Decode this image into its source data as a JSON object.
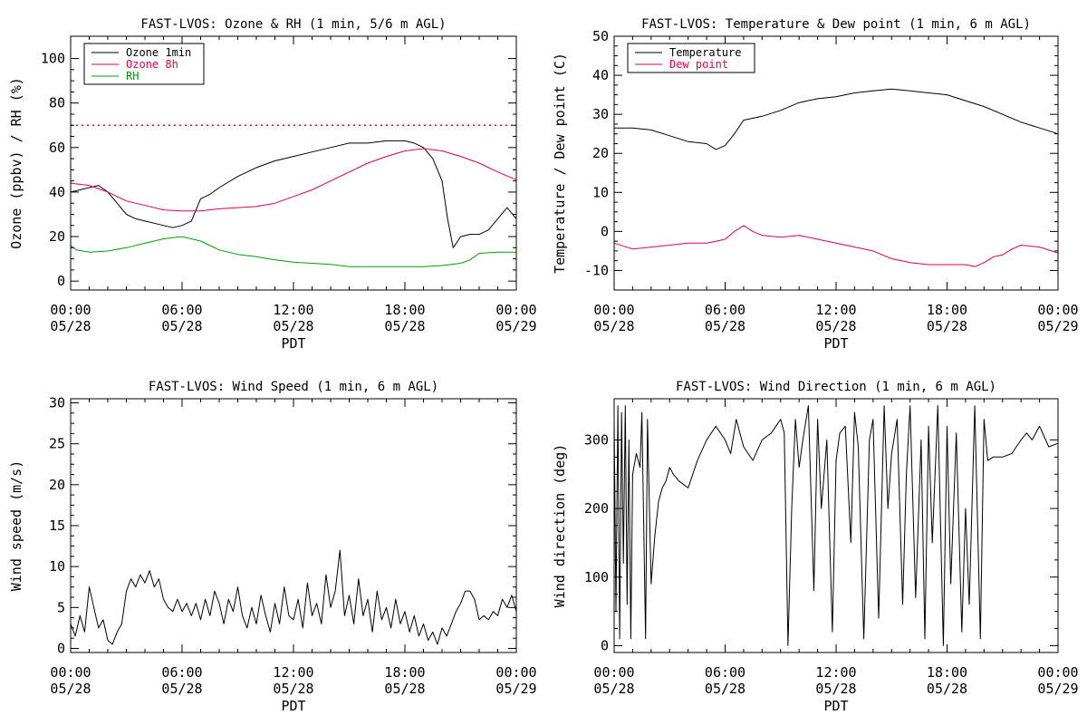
{
  "chart_data": [
    {
      "type": "line",
      "title": "FAST-LVOS: Ozone & RH (1 min, 5/6 m AGL)",
      "xlabel": "PDT",
      "ylabel": "Ozone (ppbv) / RH (%)",
      "xlim": [
        0,
        24
      ],
      "ylim": [
        -4,
        110
      ],
      "xticks": [
        0,
        6,
        12,
        18,
        24
      ],
      "xtick_labels": [
        [
          "00:00",
          "05/28"
        ],
        [
          "06:00",
          "05/28"
        ],
        [
          "12:00",
          "05/28"
        ],
        [
          "18:00",
          "05/28"
        ],
        [
          "00:00",
          "05/29"
        ]
      ],
      "yticks": [
        0,
        20,
        40,
        60,
        80,
        100
      ],
      "ytick_labels": [
        "0",
        "20",
        "40",
        "60",
        "80",
        "100"
      ],
      "legend_position": "top-left",
      "reference_line": {
        "y": 70,
        "color": "#e8001c",
        "style": "dotted"
      },
      "series": [
        {
          "name": "Ozone 1min",
          "color": "#000000",
          "x": [
            0,
            0.5,
            1,
            1.5,
            2,
            2.5,
            3,
            3.5,
            4,
            4.5,
            5,
            5.5,
            6,
            6.5,
            7,
            7.5,
            8,
            9,
            10,
            11,
            12,
            13,
            14,
            15,
            16,
            17,
            18,
            18.5,
            19,
            19.5,
            20,
            20.3,
            20.6,
            21,
            21.5,
            22,
            22.5,
            23,
            23.5,
            24
          ],
          "y": [
            40,
            41,
            42,
            43,
            40,
            35,
            30,
            28,
            27,
            26,
            25,
            24,
            25,
            27,
            37,
            39,
            42,
            47,
            51,
            54,
            56,
            58,
            60,
            62,
            62,
            63,
            63,
            62,
            60,
            55,
            45,
            28,
            15,
            20,
            21,
            21,
            23,
            28,
            33,
            28
          ]
        },
        {
          "name": "Ozone 8h",
          "color": "#e8004c",
          "x": [
            0,
            1,
            2,
            3,
            4,
            5,
            6,
            7,
            8,
            9,
            10,
            11,
            12,
            13,
            14,
            15,
            16,
            17,
            18,
            19,
            20,
            21,
            22,
            23,
            24
          ],
          "y": [
            44,
            43,
            40,
            36,
            34,
            32,
            31.5,
            31.5,
            32.5,
            33,
            33.5,
            35,
            38,
            41,
            45,
            49,
            53,
            56,
            58.5,
            59.5,
            58.5,
            56,
            53,
            49,
            45.5
          ]
        },
        {
          "name": "RH",
          "color": "#00a000",
          "x": [
            0,
            0.3,
            1,
            2,
            3,
            4,
            5,
            6,
            7,
            8,
            9,
            10,
            11,
            12,
            13,
            14,
            15,
            16,
            17,
            18,
            19,
            20,
            21,
            21.5,
            22,
            23,
            24
          ],
          "y": [
            16,
            14,
            13,
            13.5,
            15,
            17,
            19,
            20,
            18,
            14,
            12,
            11,
            9.5,
            8.5,
            8,
            7.5,
            6.5,
            6.5,
            6.5,
            6.5,
            6.5,
            7,
            8,
            9.5,
            12.5,
            13,
            13
          ]
        }
      ]
    },
    {
      "type": "line",
      "title": "FAST-LVOS: Temperature & Dew point (1 min, 6 m AGL)",
      "xlabel": "PDT",
      "ylabel": "Temperature / Dew point (C)",
      "xlim": [
        0,
        24
      ],
      "ylim": [
        -15,
        50
      ],
      "xticks": [
        0,
        6,
        12,
        18,
        24
      ],
      "xtick_labels": [
        [
          "00:00",
          "05/28"
        ],
        [
          "06:00",
          "05/28"
        ],
        [
          "12:00",
          "05/28"
        ],
        [
          "18:00",
          "05/28"
        ],
        [
          "00:00",
          "05/29"
        ]
      ],
      "yticks": [
        -10,
        0,
        10,
        20,
        30,
        40,
        50
      ],
      "ytick_labels": [
        "-10",
        "0",
        "10",
        "20",
        "30",
        "40",
        "50"
      ],
      "legend_position": "top-left",
      "series": [
        {
          "name": "Temperature",
          "color": "#000000",
          "x": [
            0,
            1,
            2,
            3,
            4,
            5,
            5.5,
            6,
            6.5,
            7,
            8,
            9,
            10,
            11,
            12,
            13,
            14,
            15,
            16,
            17,
            18,
            19,
            20,
            21,
            22,
            23,
            24
          ],
          "y": [
            26.5,
            26.5,
            26,
            24.5,
            23,
            22.5,
            21,
            22,
            25,
            28.5,
            29.5,
            31,
            33,
            34,
            34.5,
            35.5,
            36,
            36.5,
            36,
            35.5,
            35,
            33.5,
            32,
            30,
            28,
            26.5,
            25
          ]
        },
        {
          "name": "Dew point",
          "color": "#e8004c",
          "x": [
            0,
            1,
            2,
            3,
            4,
            5,
            5.5,
            6,
            6.5,
            7,
            7.5,
            8,
            9,
            10,
            11,
            12,
            13,
            14,
            15,
            16,
            17,
            18,
            19,
            19.5,
            20,
            20.5,
            21,
            21.5,
            22,
            23,
            24
          ],
          "y": [
            -3,
            -4.5,
            -4,
            -3.5,
            -3,
            -3,
            -2.5,
            -2,
            0,
            1.5,
            0,
            -1,
            -1.5,
            -1,
            -2,
            -3,
            -4,
            -5,
            -7,
            -8,
            -8.5,
            -8.5,
            -8.5,
            -9,
            -8,
            -6.5,
            -6,
            -4.5,
            -3.5,
            -4,
            -5.5
          ]
        }
      ]
    },
    {
      "type": "line",
      "title": "FAST-LVOS: Wind Speed (1 min, 6 m AGL)",
      "xlabel": "PDT",
      "ylabel": "Wind speed (m/s)",
      "xlim": [
        0,
        24
      ],
      "ylim": [
        -0.5,
        30.5
      ],
      "xticks": [
        0,
        6,
        12,
        18,
        24
      ],
      "xtick_labels": [
        [
          "00:00",
          "05/28"
        ],
        [
          "06:00",
          "05/28"
        ],
        [
          "12:00",
          "05/28"
        ],
        [
          "18:00",
          "05/28"
        ],
        [
          "00:00",
          "05/29"
        ]
      ],
      "yticks": [
        0,
        5,
        10,
        15,
        20,
        25,
        30
      ],
      "ytick_labels": [
        "0",
        "5",
        "10",
        "15",
        "20",
        "25",
        "30"
      ],
      "series": [
        {
          "color": "#000000",
          "x": [
            0,
            0.25,
            0.5,
            0.75,
            1,
            1.25,
            1.5,
            1.75,
            2,
            2.25,
            2.5,
            2.75,
            3,
            3.25,
            3.5,
            3.75,
            4,
            4.25,
            4.5,
            4.75,
            5,
            5.25,
            5.5,
            5.75,
            6,
            6.25,
            6.5,
            6.75,
            7,
            7.25,
            7.5,
            7.75,
            8,
            8.25,
            8.5,
            8.75,
            9,
            9.25,
            9.5,
            9.75,
            10,
            10.25,
            10.5,
            10.75,
            11,
            11.25,
            11.5,
            11.75,
            12,
            12.25,
            12.5,
            12.75,
            13,
            13.25,
            13.5,
            13.75,
            14,
            14.25,
            14.5,
            14.75,
            15,
            15.25,
            15.5,
            15.75,
            16,
            16.25,
            16.5,
            16.75,
            17,
            17.25,
            17.5,
            17.75,
            18,
            18.25,
            18.5,
            18.75,
            19,
            19.25,
            19.5,
            19.75,
            20,
            20.25,
            20.5,
            20.75,
            21,
            21.25,
            21.5,
            21.75,
            22,
            22.25,
            22.5,
            22.75,
            23,
            23.25,
            23.5,
            23.75,
            24
          ],
          "y": [
            3,
            1.5,
            4,
            2,
            7.5,
            5,
            2.5,
            3.5,
            1,
            0.5,
            2,
            3,
            7,
            8.5,
            7.5,
            9,
            8,
            9.5,
            7.5,
            8.5,
            6,
            5,
            4.5,
            6,
            4.5,
            5.5,
            4,
            5.5,
            3.5,
            6,
            4,
            7,
            5.5,
            3,
            6,
            4.5,
            7.5,
            4,
            2.5,
            5,
            3,
            6.5,
            4,
            2,
            5.5,
            3,
            7.5,
            4,
            3.5,
            6,
            2.5,
            8,
            4,
            5.5,
            3,
            9,
            5,
            7,
            12,
            4,
            6.5,
            3,
            8.5,
            4,
            6,
            2,
            7,
            3.5,
            5,
            2.5,
            6,
            3,
            4.5,
            2,
            4,
            1.5,
            3,
            1,
            2,
            0.5,
            2.5,
            1.5,
            3,
            4.5,
            5.5,
            7,
            7,
            6,
            3.5,
            4,
            3.5,
            4.5,
            4,
            6,
            5,
            6.5,
            4.5
          ]
        }
      ]
    },
    {
      "type": "line",
      "title": "FAST-LVOS: Wind Direction (1 min, 6 m AGL)",
      "xlabel": "PDT",
      "ylabel": "Wind direction (deg)",
      "xlim": [
        0,
        24
      ],
      "ylim": [
        -10,
        360
      ],
      "xticks": [
        0,
        6,
        12,
        18,
        24
      ],
      "xtick_labels": [
        [
          "00:00",
          "05/28"
        ],
        [
          "06:00",
          "05/28"
        ],
        [
          "12:00",
          "05/28"
        ],
        [
          "18:00",
          "05/28"
        ],
        [
          "00:00",
          "05/29"
        ]
      ],
      "yticks": [
        0,
        100,
        200,
        300
      ],
      "ytick_labels": [
        "0",
        "100",
        "200",
        "300"
      ],
      "series": [
        {
          "color": "#000000",
          "x": [
            0,
            0.1,
            0.2,
            0.3,
            0.4,
            0.5,
            0.6,
            0.7,
            0.8,
            0.9,
            1,
            1.2,
            1.4,
            1.5,
            1.7,
            1.8,
            2,
            2.2,
            2.4,
            2.6,
            2.8,
            3,
            3.2,
            3.5,
            4,
            4.5,
            5,
            5.5,
            6,
            6.3,
            6.6,
            7,
            7.5,
            8,
            8.5,
            9,
            9.2,
            9.4,
            9.6,
            9.8,
            10,
            10.2,
            10.5,
            10.8,
            11,
            11.2,
            11.5,
            11.8,
            12,
            12.2,
            12.5,
            12.8,
            13,
            13.2,
            13.5,
            13.8,
            14,
            14.3,
            14.6,
            14.8,
            15,
            15.3,
            15.6,
            15.8,
            16,
            16.3,
            16.6,
            16.8,
            17,
            17.2,
            17.5,
            17.8,
            18,
            18.2,
            18.5,
            18.8,
            19,
            19.2,
            19.5,
            19.8,
            20,
            20.2,
            20.5,
            21,
            21.5,
            22,
            22.3,
            22.6,
            23,
            23.5,
            24
          ],
          "y": [
            330,
            50,
            350,
            10,
            340,
            120,
            350,
            60,
            300,
            10,
            250,
            280,
            260,
            340,
            10,
            330,
            90,
            160,
            210,
            230,
            240,
            260,
            250,
            240,
            230,
            270,
            300,
            320,
            300,
            280,
            330,
            290,
            270,
            300,
            310,
            330,
            310,
            0,
            200,
            330,
            260,
            300,
            350,
            80,
            330,
            200,
            300,
            20,
            270,
            310,
            320,
            150,
            340,
            290,
            10,
            300,
            330,
            40,
            350,
            200,
            280,
            330,
            60,
            250,
            350,
            70,
            300,
            10,
            320,
            150,
            350,
            0,
            320,
            90,
            310,
            20,
            200,
            60,
            350,
            10,
            330,
            270,
            275,
            275,
            280,
            300,
            310,
            300,
            320,
            290,
            295
          ]
        }
      ]
    }
  ]
}
